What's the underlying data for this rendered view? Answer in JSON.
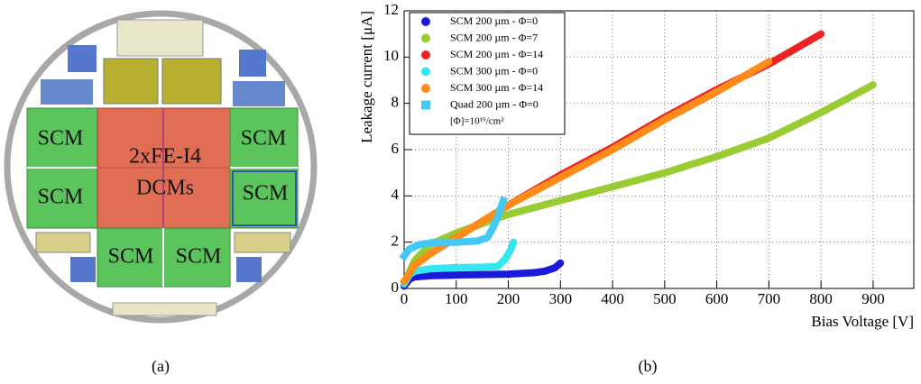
{
  "wafer": {
    "labels": [
      "SCM",
      "SCM",
      "SCM",
      "SCM",
      "SCM",
      "SCM",
      "2xFE-I4",
      "DCMs"
    ]
  },
  "captions": [
    "(a)",
    "(b)"
  ],
  "chart_data": {
    "type": "line",
    "xlabel": "Bias Voltage [V]",
    "ylabel": "Leakage current [μA]",
    "xlim": [
      0,
      978
    ],
    "ylim": [
      0,
      12
    ],
    "xticks": [
      0,
      100,
      200,
      300,
      400,
      500,
      600,
      700,
      800,
      900
    ],
    "yticks": [
      0,
      2,
      4,
      6,
      8,
      10,
      12
    ],
    "grid": true,
    "legend": "upper left",
    "legend_note": "[Φ]=10¹⁵/cm²",
    "series": [
      {
        "name": "SCM 200 µm - Φ=0",
        "color": "#1a1adb",
        "marker": "circle",
        "x": [
          0,
          10,
          20,
          50,
          100,
          150,
          200,
          250,
          270,
          290,
          300
        ],
        "values": [
          0.1,
          0.4,
          0.5,
          0.55,
          0.58,
          0.6,
          0.62,
          0.68,
          0.75,
          0.9,
          1.1
        ]
      },
      {
        "name": "SCM 200 µm - Φ=7",
        "color": "#99cc33",
        "marker": "circle",
        "x": [
          0,
          20,
          50,
          100,
          200,
          300,
          400,
          500,
          600,
          700,
          800,
          900
        ],
        "values": [
          0.2,
          1.2,
          1.9,
          2.4,
          3.2,
          3.8,
          4.4,
          5.0,
          5.7,
          6.5,
          7.6,
          8.8
        ]
      },
      {
        "name": "SCM 200 µm - Φ=14",
        "color": "#ee2222",
        "marker": "circle",
        "x": [
          0,
          20,
          50,
          100,
          200,
          300,
          400,
          500,
          600,
          700,
          800
        ],
        "values": [
          0.2,
          1.0,
          1.5,
          2.2,
          3.6,
          4.9,
          6.1,
          7.4,
          8.6,
          9.7,
          11.0
        ]
      },
      {
        "name": "SCM 300 µm - Φ=0",
        "color": "#33e6f0",
        "marker": "circle",
        "x": [
          0,
          10,
          20,
          50,
          100,
          150,
          180,
          195,
          205,
          210
        ],
        "values": [
          0.2,
          0.6,
          0.75,
          0.85,
          0.9,
          0.92,
          0.95,
          1.3,
          1.7,
          2.0
        ]
      },
      {
        "name": "SCM 300 µm - Φ=14",
        "color": "#ff8c1a",
        "marker": "circle",
        "x": [
          0,
          20,
          50,
          100,
          200,
          300,
          400,
          500,
          600,
          700
        ],
        "values": [
          0.3,
          1.0,
          1.5,
          2.2,
          3.6,
          4.8,
          6.0,
          7.3,
          8.5,
          9.8
        ]
      },
      {
        "name": "Quad 200 µm - Φ=0",
        "color": "#44c8f5",
        "marker": "square",
        "x": [
          0,
          10,
          30,
          60,
          100,
          140,
          160,
          170,
          180,
          190
        ],
        "values": [
          1.4,
          1.7,
          1.9,
          2.0,
          2.0,
          2.05,
          2.2,
          2.6,
          3.1,
          3.8
        ]
      }
    ]
  }
}
